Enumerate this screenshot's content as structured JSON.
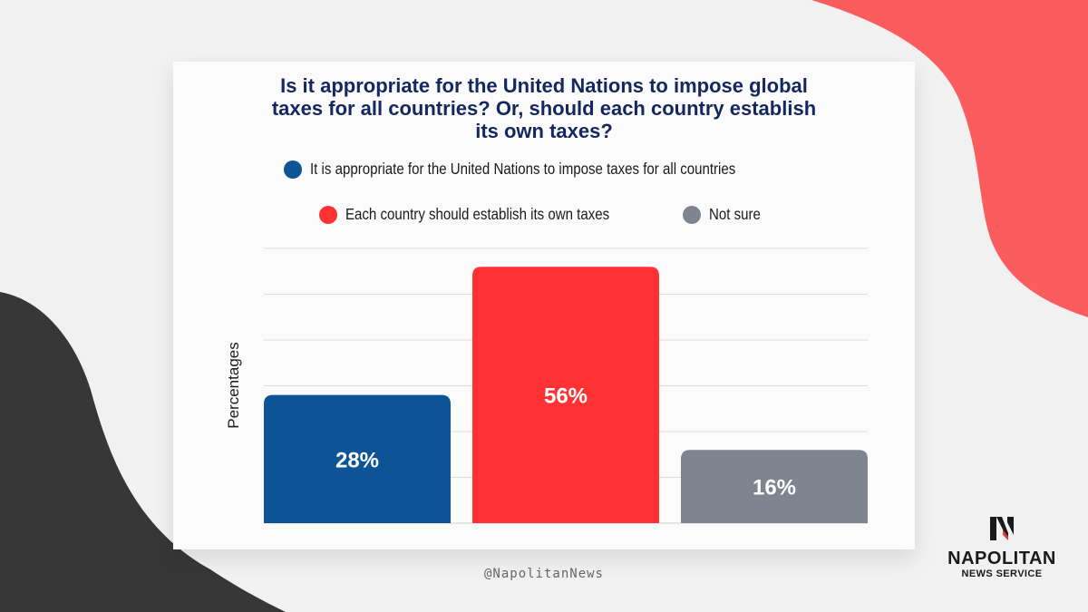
{
  "colors": {
    "background": "#f1f1f2",
    "accent_red_shape": "#fb5d5f",
    "accent_dark_shape": "#373737",
    "title": "#14275e",
    "blue": "#0c5496",
    "red": "#fe3233",
    "gray": "#7f8590"
  },
  "header": {
    "title_lines": [
      "Is it appropriate for the United Nations to impose global",
      "taxes for all countries? Or, should each country establish",
      "its own taxes?"
    ]
  },
  "legend": [
    {
      "label": "It is appropriate for the United Nations to impose taxes for all countries",
      "color": "#0c5496"
    },
    {
      "label": "Each country should establish its own taxes",
      "color": "#fe3233"
    },
    {
      "label": "Not sure",
      "color": "#7f8590"
    }
  ],
  "chart_data": {
    "type": "bar",
    "title": "Is it appropriate for the United Nations to impose global taxes for all countries? Or, should each country establish its own taxes?",
    "ylabel": "Percentages",
    "xlabel": "",
    "categories": [
      "It is appropriate for the United Nations to impose taxes for all countries",
      "Each country should establish its own taxes",
      "Not sure"
    ],
    "values": [
      28,
      56,
      16
    ],
    "data_labels": [
      "28%",
      "56%",
      "16%"
    ],
    "colors": [
      "#0c5496",
      "#fe3233",
      "#7f8590"
    ],
    "ylim": [
      0,
      60
    ],
    "grid": true,
    "legend_position": "top"
  },
  "footer": {
    "handle": "@NapolitanNews",
    "brand_name": "NAPOLITAN",
    "brand_sub": "NEWS SERVICE",
    "logo_icon": "n-monogram-icon"
  }
}
